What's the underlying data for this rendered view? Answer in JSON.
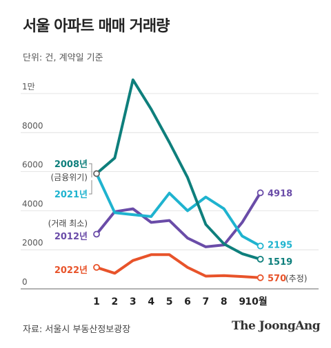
{
  "title": "서울 아파트 매매 거래량",
  "unit_note": "단위: 건, 계약일 기준",
  "source": "자료: 서울시 부동산정보광장",
  "brand": "The JoongAng",
  "colors": {
    "2008": "#0e7f7c",
    "2021": "#1fb3cf",
    "2012": "#6a4ca8",
    "2022": "#e8532a",
    "grid": "#dddddd",
    "axis": "#666666"
  },
  "chart_data": {
    "type": "line",
    "title": "서울 아파트 매매 거래량",
    "xlabel": "",
    "ylabel": "",
    "ylim": [
      0,
      10000
    ],
    "yticks": [
      0,
      2000,
      4000,
      6000,
      8000,
      10000
    ],
    "ytick_labels": [
      "0",
      "2000",
      "4000",
      "6000",
      "8000",
      "1만"
    ],
    "x": [
      1,
      2,
      3,
      4,
      5,
      6,
      7,
      8,
      9,
      10
    ],
    "xtick_labels": [
      "1",
      "2",
      "3",
      "4",
      "5",
      "6",
      "7",
      "8",
      "9",
      "10월"
    ],
    "grid": true,
    "series": [
      {
        "name": "2008년",
        "note": "(금융위기)",
        "color": "#0e7f7c",
        "values": [
          5900,
          6700,
          10700,
          9200,
          7500,
          5700,
          3300,
          2300,
          1800,
          1519
        ],
        "end_label": "1519"
      },
      {
        "name": "2021년",
        "color": "#1fb3cf",
        "values": [
          5900,
          3900,
          3800,
          3700,
          4900,
          4000,
          4700,
          4100,
          2700,
          2195
        ],
        "end_label": "2195"
      },
      {
        "name": "2012년",
        "note": "(거래 최소)",
        "color": "#6a4ca8",
        "values": [
          2800,
          3950,
          4100,
          3400,
          3500,
          2600,
          2150,
          2250,
          3400,
          4918
        ],
        "end_label": "4918"
      },
      {
        "name": "2022년",
        "color": "#e8532a",
        "values": [
          1100,
          800,
          1450,
          1750,
          1750,
          1100,
          650,
          680,
          630,
          570
        ],
        "end_label": "570",
        "end_note": "(추정)"
      }
    ]
  }
}
